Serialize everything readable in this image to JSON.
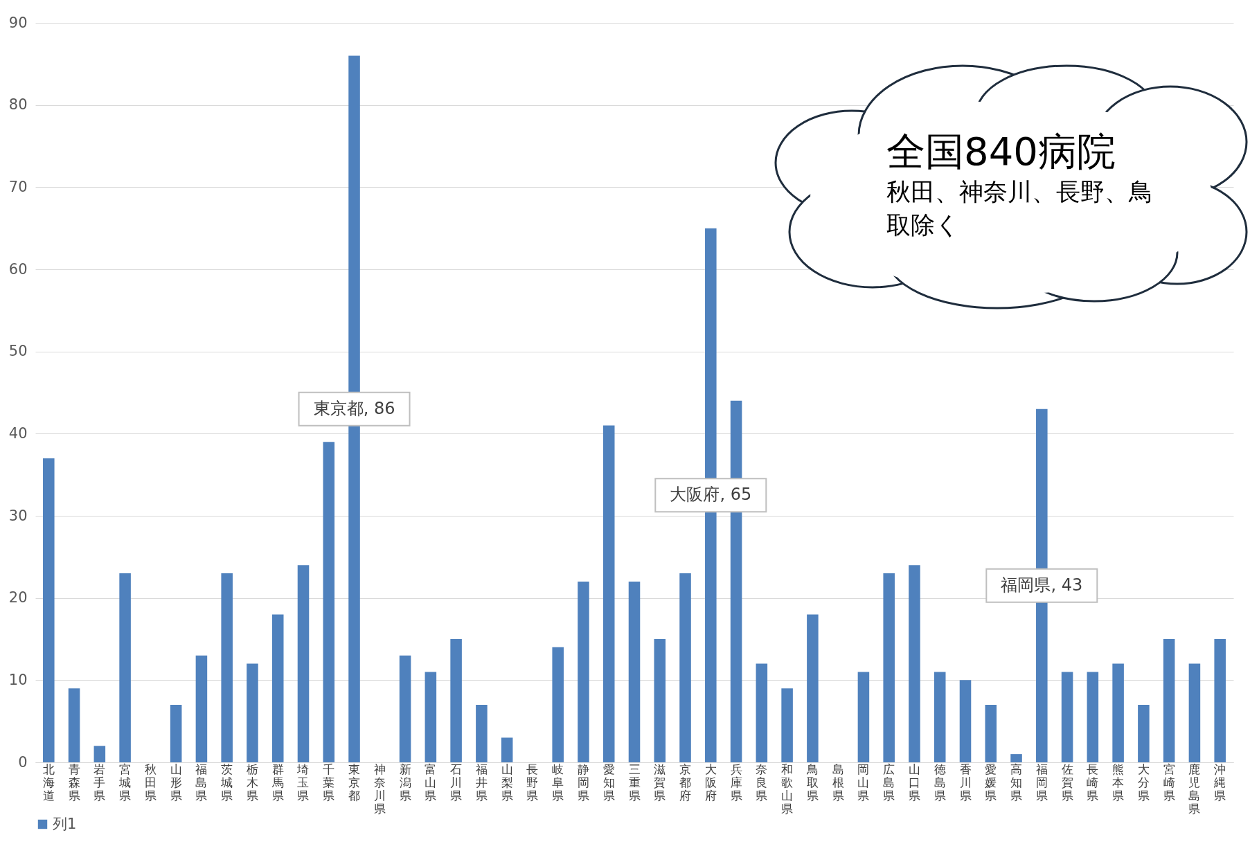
{
  "chart_data": {
    "type": "bar",
    "categories": [
      "北海道",
      "青森県",
      "岩手県",
      "宮城県",
      "秋田県",
      "山形県",
      "福島県",
      "茨城県",
      "栃木県",
      "群馬県",
      "埼玉県",
      "千葉県",
      "東京都",
      "神奈川県",
      "新潟県",
      "富山県",
      "石川県",
      "福井県",
      "山梨県",
      "長野県",
      "岐阜県",
      "静岡県",
      "愛知県",
      "三重県",
      "滋賀県",
      "京都府",
      "大阪府",
      "兵庫県",
      "奈良県",
      "和歌山県",
      "鳥取県",
      "島根県",
      "岡山県",
      "広島県",
      "山口県",
      "徳島県",
      "香川県",
      "愛媛県",
      "高知県",
      "福岡県",
      "佐賀県",
      "長崎県",
      "熊本県",
      "大分県",
      "宮崎県",
      "鹿児島県",
      "沖縄県"
    ],
    "series": [
      {
        "name": "列1",
        "color": "#4f81bd",
        "values": [
          37,
          9,
          2,
          23,
          null,
          7,
          13,
          23,
          12,
          18,
          24,
          39,
          86,
          null,
          13,
          11,
          15,
          7,
          3,
          null,
          14,
          22,
          41,
          22,
          15,
          23,
          65,
          44,
          12,
          9,
          18,
          null,
          11,
          23,
          24,
          11,
          10,
          7,
          1,
          43,
          11,
          11,
          12,
          7,
          15,
          12,
          15
        ],
        "value_labels": [
          null,
          null,
          null,
          null,
          null,
          null,
          null,
          null,
          null,
          null,
          null,
          null,
          "東京都, 86",
          null,
          null,
          null,
          null,
          null,
          null,
          null,
          null,
          null,
          null,
          null,
          null,
          null,
          "大阪府, 65",
          null,
          null,
          null,
          null,
          null,
          null,
          null,
          null,
          null,
          null,
          null,
          null,
          "福岡県, 43",
          null,
          null,
          null,
          null,
          null,
          null,
          null
        ]
      }
    ],
    "ylim": [
      0,
      90
    ],
    "yticks": [
      0,
      10,
      20,
      30,
      40,
      50,
      60,
      70,
      80,
      90
    ],
    "grid": "y",
    "legend": "bottom",
    "annotations": [
      "全国840病院",
      "秋田、神奈川、長野、鳥取除く"
    ]
  }
}
